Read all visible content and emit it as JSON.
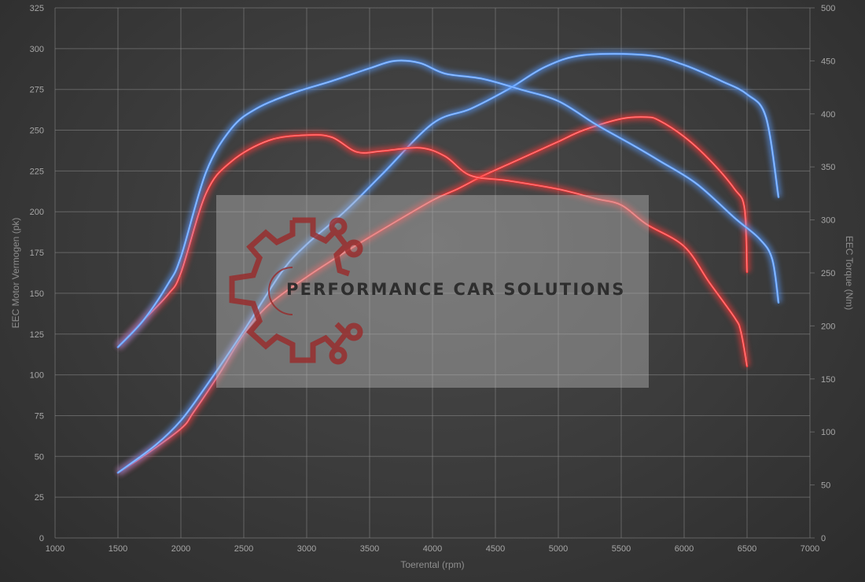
{
  "chart_data": {
    "type": "line",
    "title": "",
    "xlabel": "Toerental (rpm)",
    "ylabel_left": "EEC Motor Vermogen (pk)",
    "ylabel_right": "EEC Torque (Nm)",
    "xlim": [
      1000,
      7000
    ],
    "ylim_left": [
      0,
      325
    ],
    "ylim_right": [
      0,
      500
    ],
    "x_ticks": [
      "1000",
      "1500",
      "2000",
      "2500",
      "3000",
      "3500",
      "4000",
      "4500",
      "5000",
      "5500",
      "6000",
      "6500",
      "7000"
    ],
    "y_ticks_left": [
      "0",
      "25",
      "50",
      "75",
      "100",
      "125",
      "150",
      "175",
      "200",
      "225",
      "250",
      "275",
      "300",
      "325"
    ],
    "y_ticks_right": [
      "0",
      "50",
      "100",
      "150",
      "200",
      "250",
      "300",
      "350",
      "400",
      "450",
      "500"
    ],
    "grid": true,
    "legend": "none",
    "colors": {
      "red": "#ff3b3b",
      "blue": "#5a9cff",
      "grid": "#8a8a8a"
    },
    "series": [
      {
        "axis": "left",
        "color": "red",
        "points": [
          [
            1500,
            40
          ],
          [
            1700,
            50
          ],
          [
            2000,
            67
          ],
          [
            2100,
            77
          ],
          [
            2300,
            100
          ],
          [
            2500,
            125
          ],
          [
            2700,
            143
          ],
          [
            3000,
            160
          ],
          [
            3300,
            175
          ],
          [
            3600,
            189
          ],
          [
            4000,
            207
          ],
          [
            4200,
            214
          ],
          [
            4400,
            222
          ],
          [
            4600,
            229
          ],
          [
            4800,
            236
          ],
          [
            5000,
            243
          ],
          [
            5200,
            250
          ],
          [
            5500,
            257
          ],
          [
            5700,
            258
          ],
          [
            5800,
            256
          ],
          [
            6000,
            246
          ],
          [
            6200,
            232
          ],
          [
            6400,
            214
          ],
          [
            6480,
            202
          ],
          [
            6500,
            163
          ]
        ]
      },
      {
        "axis": "left",
        "color": "blue",
        "points": [
          [
            1500,
            40
          ],
          [
            1800,
            57
          ],
          [
            2000,
            72
          ],
          [
            2200,
            93
          ],
          [
            2500,
            127
          ],
          [
            2800,
            163
          ],
          [
            3000,
            180
          ],
          [
            3300,
            200
          ],
          [
            3600,
            223
          ],
          [
            4000,
            254
          ],
          [
            4300,
            263
          ],
          [
            4600,
            275
          ],
          [
            4900,
            289
          ],
          [
            5200,
            296
          ],
          [
            5700,
            296
          ],
          [
            6000,
            290
          ],
          [
            6300,
            280
          ],
          [
            6500,
            272
          ],
          [
            6650,
            258
          ],
          [
            6750,
            209
          ]
        ]
      },
      {
        "axis": "right",
        "color": "red",
        "points": [
          [
            1500,
            180
          ],
          [
            1700,
            205
          ],
          [
            1900,
            230
          ],
          [
            2000,
            250
          ],
          [
            2200,
            325
          ],
          [
            2400,
            355
          ],
          [
            2700,
            375
          ],
          [
            3000,
            380
          ],
          [
            3200,
            378
          ],
          [
            3400,
            364
          ],
          [
            3600,
            365
          ],
          [
            3900,
            368
          ],
          [
            4100,
            360
          ],
          [
            4300,
            342
          ],
          [
            4600,
            337
          ],
          [
            5000,
            329
          ],
          [
            5300,
            320
          ],
          [
            5500,
            314
          ],
          [
            5700,
            296
          ],
          [
            6000,
            275
          ],
          [
            6200,
            241
          ],
          [
            6400,
            208
          ],
          [
            6450,
            195
          ],
          [
            6500,
            162
          ]
        ]
      },
      {
        "axis": "right",
        "color": "blue",
        "points": [
          [
            1500,
            180
          ],
          [
            1700,
            205
          ],
          [
            1900,
            240
          ],
          [
            2000,
            265
          ],
          [
            2200,
            345
          ],
          [
            2400,
            386
          ],
          [
            2600,
            405
          ],
          [
            2900,
            420
          ],
          [
            3200,
            431
          ],
          [
            3500,
            443
          ],
          [
            3700,
            450
          ],
          [
            3900,
            448
          ],
          [
            4100,
            438
          ],
          [
            4400,
            433
          ],
          [
            4700,
            423
          ],
          [
            5000,
            412
          ],
          [
            5300,
            390
          ],
          [
            5600,
            370
          ],
          [
            5800,
            356
          ],
          [
            6100,
            334
          ],
          [
            6400,
            302
          ],
          [
            6600,
            282
          ],
          [
            6700,
            263
          ],
          [
            6750,
            222
          ]
        ]
      }
    ]
  },
  "watermark": {
    "text": "PERFORMANCE CAR SOLUTIONS"
  }
}
